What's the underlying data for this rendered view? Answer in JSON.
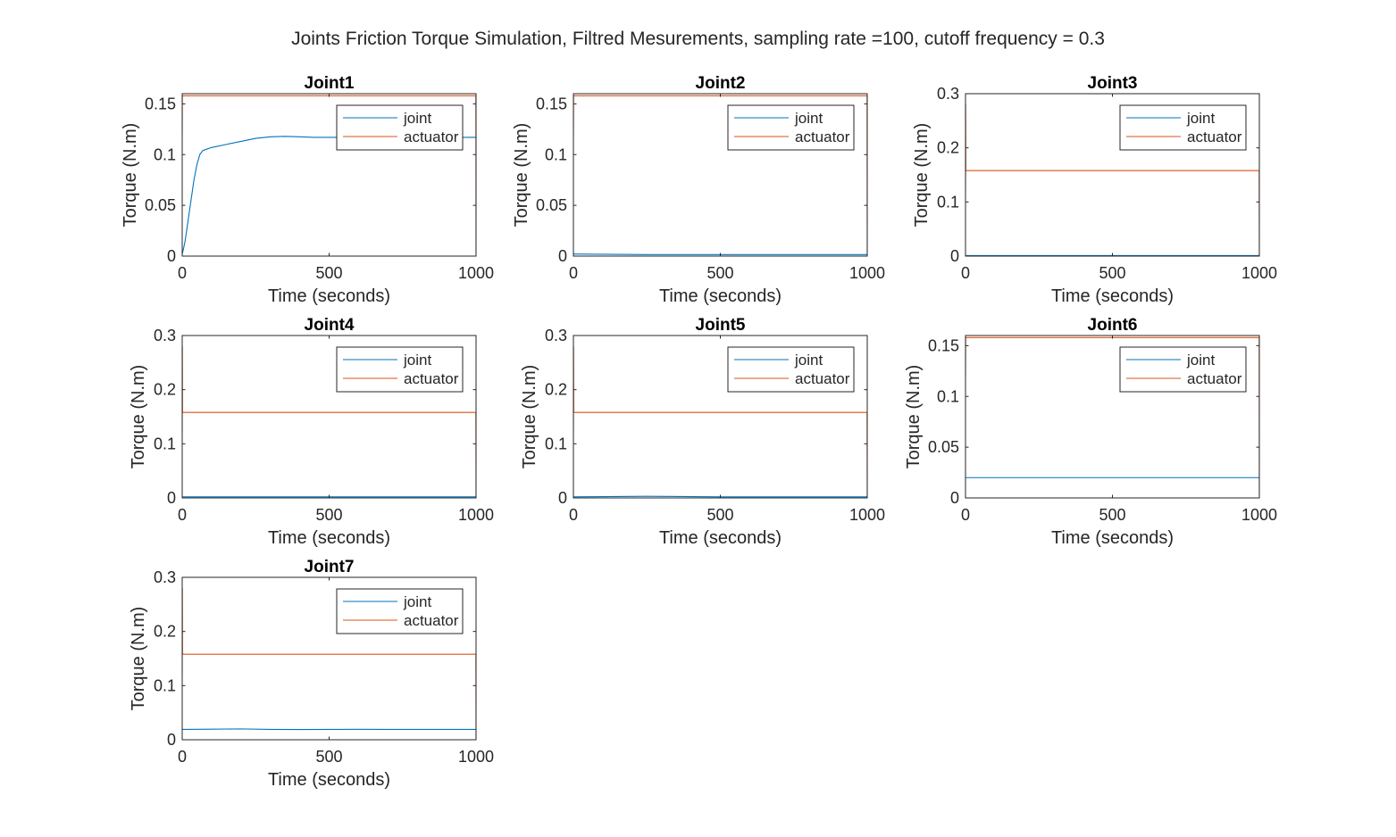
{
  "figure_title": "Joints Friction Torque Simulation, Filtred Mesurements, sampling rate =100, cutoff frequency = 0.3",
  "colors": {
    "joint": "#0072BD",
    "actuator": "#D95319",
    "axis": "#262626"
  },
  "chart_data": [
    {
      "type": "line",
      "title": "Joint1",
      "xlabel": "Time (seconds)",
      "ylabel": "Torque (N.m)",
      "xlim": [
        0,
        1000
      ],
      "ylim": [
        0,
        0.16
      ],
      "xticks": [
        0,
        500,
        1000
      ],
      "yticks": [
        0,
        0.05,
        0.1,
        0.15
      ],
      "xtick_labels": [
        "0",
        "500",
        "1000"
      ],
      "ytick_labels": [
        "0",
        "0.05",
        "0.1",
        "0.15"
      ],
      "legend": {
        "position": "top-right",
        "entries": [
          "joint",
          "actuator"
        ]
      },
      "series": [
        {
          "name": "joint",
          "x": [
            0,
            5,
            10,
            20,
            30,
            40,
            50,
            60,
            70,
            80,
            100,
            150,
            200,
            250,
            300,
            350,
            400,
            450,
            500,
            600,
            700,
            800,
            900,
            1000
          ],
          "y": [
            0.002,
            0.008,
            0.015,
            0.035,
            0.055,
            0.075,
            0.09,
            0.1,
            0.104,
            0.105,
            0.107,
            0.11,
            0.113,
            0.116,
            0.1175,
            0.118,
            0.1175,
            0.117,
            0.117,
            0.117,
            0.117,
            0.117,
            0.117,
            0.117
          ]
        },
        {
          "name": "actuator",
          "x": [
            0,
            0.5,
            1,
            999,
            999.5,
            1000
          ],
          "y": [
            0.12,
            0.158,
            0.158,
            0.158,
            0.158,
            0.002
          ]
        }
      ]
    },
    {
      "type": "line",
      "title": "Joint2",
      "xlabel": "Time (seconds)",
      "ylabel": "Torque (N.m)",
      "xlim": [
        0,
        1000
      ],
      "ylim": [
        0,
        0.16
      ],
      "xticks": [
        0,
        500,
        1000
      ],
      "yticks": [
        0,
        0.05,
        0.1,
        0.15
      ],
      "xtick_labels": [
        "0",
        "500",
        "1000"
      ],
      "ytick_labels": [
        "0",
        "0.05",
        "0.1",
        "0.15"
      ],
      "legend": {
        "position": "top-right",
        "entries": [
          "joint",
          "actuator"
        ]
      },
      "series": [
        {
          "name": "joint",
          "x": [
            0,
            250,
            500,
            750,
            1000
          ],
          "y": [
            0.002,
            0.0015,
            0.0015,
            0.0015,
            0.0015
          ]
        },
        {
          "name": "actuator",
          "x": [
            0,
            0.5,
            1,
            999,
            999.5,
            1000
          ],
          "y": [
            0.12,
            0.158,
            0.158,
            0.158,
            0.158,
            0.002
          ]
        }
      ]
    },
    {
      "type": "line",
      "title": "Joint3",
      "xlabel": "Time (seconds)",
      "ylabel": "Torque (N.m)",
      "xlim": [
        0,
        1000
      ],
      "ylim": [
        0,
        0.3
      ],
      "xticks": [
        0,
        500,
        1000
      ],
      "yticks": [
        0,
        0.1,
        0.2,
        0.3
      ],
      "xtick_labels": [
        "0",
        "500",
        "1000"
      ],
      "ytick_labels": [
        "0",
        "0.1",
        "0.2",
        "0.3"
      ],
      "legend": {
        "position": "top-right",
        "entries": [
          "joint",
          "actuator"
        ]
      },
      "series": [
        {
          "name": "joint",
          "x": [
            0,
            500,
            1000
          ],
          "y": [
            0.001,
            0.001,
            0.001
          ]
        },
        {
          "name": "actuator",
          "x": [
            0,
            0.5,
            1,
            1.5,
            999,
            999.5,
            1000
          ],
          "y": [
            0.12,
            0.28,
            0.16,
            0.158,
            0.158,
            0.158,
            0.002
          ]
        }
      ]
    },
    {
      "type": "line",
      "title": "Joint4",
      "xlabel": "Time (seconds)",
      "ylabel": "Torque (N.m)",
      "xlim": [
        0,
        1000
      ],
      "ylim": [
        0,
        0.3
      ],
      "xticks": [
        0,
        500,
        1000
      ],
      "yticks": [
        0,
        0.1,
        0.2,
        0.3
      ],
      "xtick_labels": [
        "0",
        "500",
        "1000"
      ],
      "ytick_labels": [
        "0",
        "0.1",
        "0.2",
        "0.3"
      ],
      "legend": {
        "position": "top-right",
        "entries": [
          "joint",
          "actuator"
        ]
      },
      "series": [
        {
          "name": "joint",
          "x": [
            0,
            500,
            1000
          ],
          "y": [
            0.002,
            0.002,
            0.002
          ]
        },
        {
          "name": "actuator",
          "x": [
            0,
            0.5,
            1,
            1.5,
            999,
            999.5,
            1000
          ],
          "y": [
            0.12,
            0.28,
            0.16,
            0.158,
            0.158,
            0.158,
            0.002
          ]
        }
      ]
    },
    {
      "type": "line",
      "title": "Joint5",
      "xlabel": "Time (seconds)",
      "ylabel": "Torque (N.m)",
      "xlim": [
        0,
        1000
      ],
      "ylim": [
        0,
        0.3
      ],
      "xticks": [
        0,
        500,
        1000
      ],
      "yticks": [
        0,
        0.1,
        0.2,
        0.3
      ],
      "xtick_labels": [
        "0",
        "500",
        "1000"
      ],
      "ytick_labels": [
        "0",
        "0.1",
        "0.2",
        "0.3"
      ],
      "legend": {
        "position": "top-right",
        "entries": [
          "joint",
          "actuator"
        ]
      },
      "series": [
        {
          "name": "joint",
          "x": [
            0,
            250,
            500,
            750,
            1000
          ],
          "y": [
            0.002,
            0.003,
            0.002,
            0.002,
            0.002
          ]
        },
        {
          "name": "actuator",
          "x": [
            0,
            0.5,
            1,
            1.5,
            999,
            999.5,
            1000
          ],
          "y": [
            0.12,
            0.28,
            0.16,
            0.158,
            0.158,
            0.158,
            0.002
          ]
        }
      ]
    },
    {
      "type": "line",
      "title": "Joint6",
      "xlabel": "Time (seconds)",
      "ylabel": "Torque (N.m)",
      "xlim": [
        0,
        1000
      ],
      "ylim": [
        0,
        0.16
      ],
      "xticks": [
        0,
        500,
        1000
      ],
      "yticks": [
        0,
        0.05,
        0.1,
        0.15
      ],
      "xtick_labels": [
        "0",
        "500",
        "1000"
      ],
      "ytick_labels": [
        "0",
        "0.05",
        "0.1",
        "0.15"
      ],
      "legend": {
        "position": "top-right",
        "entries": [
          "joint",
          "actuator"
        ]
      },
      "series": [
        {
          "name": "joint",
          "x": [
            0,
            500,
            1000
          ],
          "y": [
            0.02,
            0.02,
            0.02
          ]
        },
        {
          "name": "actuator",
          "x": [
            0,
            0.5,
            1,
            999,
            999.5,
            1000
          ],
          "y": [
            0.12,
            0.158,
            0.158,
            0.158,
            0.158,
            0.002
          ]
        }
      ]
    },
    {
      "type": "line",
      "title": "Joint7",
      "xlabel": "Time (seconds)",
      "ylabel": "Torque (N.m)",
      "xlim": [
        0,
        1000
      ],
      "ylim": [
        0,
        0.3
      ],
      "xticks": [
        0,
        500,
        1000
      ],
      "yticks": [
        0,
        0.1,
        0.2,
        0.3
      ],
      "xtick_labels": [
        "0",
        "500",
        "1000"
      ],
      "ytick_labels": [
        "0",
        "0.1",
        "0.2",
        "0.3"
      ],
      "legend": {
        "position": "top-right",
        "entries": [
          "joint",
          "actuator"
        ]
      },
      "series": [
        {
          "name": "joint",
          "x": [
            0,
            100,
            200,
            300,
            400,
            500,
            600,
            700,
            800,
            900,
            1000
          ],
          "y": [
            0.019,
            0.0195,
            0.02,
            0.019,
            0.0188,
            0.019,
            0.0192,
            0.019,
            0.019,
            0.019,
            0.019
          ]
        },
        {
          "name": "actuator",
          "x": [
            0,
            0.5,
            1,
            1.5,
            999,
            999.5,
            1000
          ],
          "y": [
            0.12,
            0.28,
            0.16,
            0.158,
            0.158,
            0.158,
            0.002
          ]
        }
      ]
    }
  ]
}
